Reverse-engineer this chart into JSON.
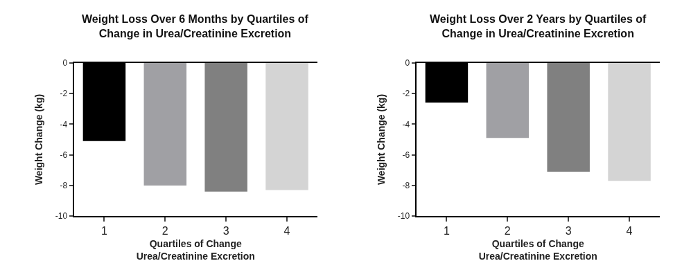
{
  "chart_data": [
    {
      "type": "bar",
      "title": "Weight Loss Over 6 Months by Quartiles of\nChange in Urea/Creatinine Excretion",
      "xlabel": "Quartiles of Change\nUrea/Creatinine Excretion",
      "ylabel": "Weight Change (kg)",
      "categories": [
        "1",
        "2",
        "3",
        "4"
      ],
      "values": [
        -5.1,
        -8.0,
        -8.4,
        -8.3
      ],
      "colors": [
        "#000000",
        "#a0a0a4",
        "#808080",
        "#d4d4d4"
      ],
      "ylim": [
        -10,
        0
      ],
      "yticks": [
        -10,
        -8,
        -6,
        -4,
        -2,
        0
      ]
    },
    {
      "type": "bar",
      "title": "Weight Loss Over 2 Years by Quartiles of\nChange in Urea/Creatinine Excretion",
      "xlabel": "Quartiles of Change\nUrea/Creatinine Excretion",
      "ylabel": "Weight Change (kg)",
      "categories": [
        "1",
        "2",
        "3",
        "4"
      ],
      "values": [
        -2.6,
        -4.9,
        -7.1,
        -7.7
      ],
      "colors": [
        "#000000",
        "#a0a0a4",
        "#808080",
        "#d4d4d4"
      ],
      "ylim": [
        -10,
        0
      ],
      "yticks": [
        -10,
        -8,
        -6,
        -4,
        -2,
        0
      ]
    }
  ]
}
